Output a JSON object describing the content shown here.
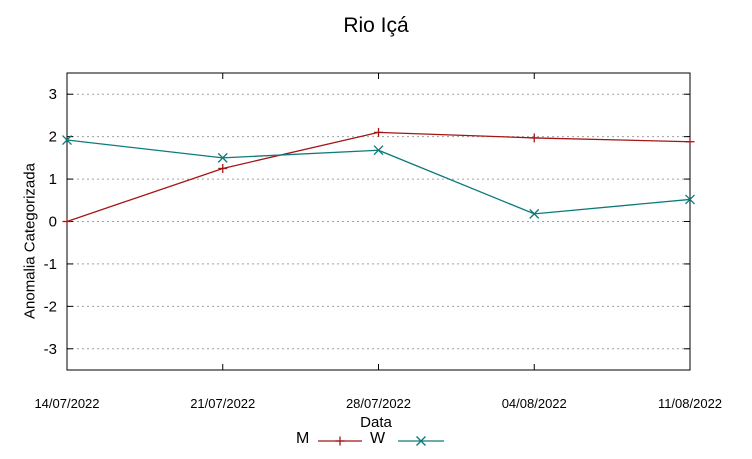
{
  "chart_data": {
    "type": "line",
    "title": "Rio Içá",
    "xlabel": "Data",
    "ylabel": "Anomalia Categorizada",
    "categories": [
      "14/07/2022",
      "21/07/2022",
      "28/07/2022",
      "04/08/2022",
      "11/08/2022"
    ],
    "yticks": [
      "-3",
      "-2",
      "-1",
      "0",
      "1",
      "2",
      "3"
    ],
    "ylim": [
      -3.5,
      3.5
    ],
    "grid": true,
    "legend_position": "bottom",
    "series": [
      {
        "name": "M",
        "values": [
          0.0,
          1.25,
          2.1,
          1.97,
          1.88
        ],
        "color": "#a31515",
        "marker": "plus"
      },
      {
        "name": "W",
        "values": [
          1.92,
          1.5,
          1.68,
          0.18,
          0.52
        ],
        "color": "#0f7a7a",
        "marker": "cross"
      }
    ]
  }
}
